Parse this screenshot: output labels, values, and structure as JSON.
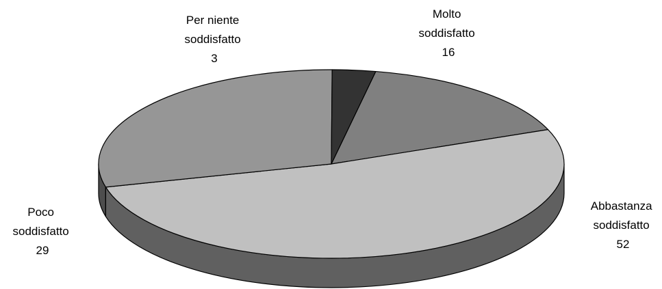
{
  "chart_data": {
    "type": "pie",
    "style": "3d",
    "labels": [
      "Molto soddisfatto",
      "Abbastanza soddisfatto",
      "Poco soddisfatto",
      "Per niente soddisfatto"
    ],
    "values": [
      16,
      52,
      29,
      3
    ],
    "colors": {
      "top": [
        "#808080",
        "#c0c0c0",
        "#969696",
        "#333333"
      ],
      "side": [
        "#404040",
        "#606060",
        "#4d4d4d",
        "#1f1f1f"
      ]
    },
    "data_labels": [
      {
        "lines": [
          "Molto",
          "soddisfatto"
        ],
        "value": "16"
      },
      {
        "lines": [
          "Abbastanza",
          "soddisfatto"
        ],
        "value": "52"
      },
      {
        "lines": [
          "Poco",
          "soddisfatto"
        ],
        "value": "29"
      },
      {
        "lines": [
          "Per niente",
          "soddisfatto"
        ],
        "value": "3"
      }
    ]
  }
}
